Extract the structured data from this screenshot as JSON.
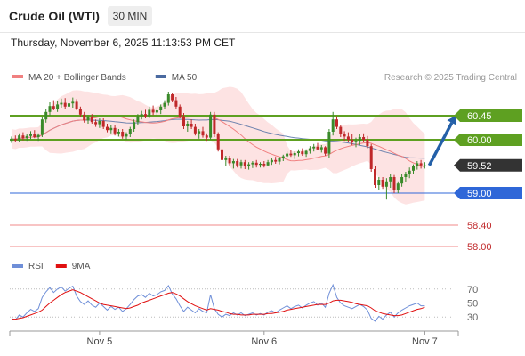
{
  "header": {
    "instrument": "Crude Oil (WTI)",
    "timeframe": "30 MIN"
  },
  "datetime": "Thursday, November 6, 2025 11:13:53 PM CET",
  "credit": "Research © 2025 Trading Central",
  "colors": {
    "bull": "#3a8a2a",
    "bear": "#c0282a",
    "ma20": "#f08080",
    "ma50": "#4a6aa0",
    "bollinger_fill": "#fde0e0",
    "resistance": "#5ea021",
    "pivot": "#2f67d8",
    "support": "#f08a8a",
    "current": "#333333",
    "rsi": "#6f8fd8",
    "rsi_ma": "#e01010",
    "arrow": "#2460a8"
  },
  "chart_data": [
    {
      "type": "candlestick",
      "x_ticks": [
        "Nov 5",
        "Nov 6",
        "Nov 7"
      ],
      "ylim": [
        57.9,
        60.95
      ],
      "legend": [
        {
          "name": "MA 20 + Bollinger Bands",
          "color": "#f08080"
        },
        {
          "name": "MA 50",
          "color": "#4a6aa0"
        }
      ],
      "levels": [
        {
          "value": 60.45,
          "label": "60.45",
          "type": "resistance"
        },
        {
          "value": 60.0,
          "label": "60.00",
          "type": "resistance"
        },
        {
          "value": 59.52,
          "label": "59.52",
          "type": "current"
        },
        {
          "value": 59.0,
          "label": "59.00",
          "type": "pivot"
        },
        {
          "value": 58.4,
          "label": "58.40",
          "type": "support"
        },
        {
          "value": 58.0,
          "label": "58.00",
          "type": "support"
        }
      ],
      "candles": [
        [
          59.98,
          60.06,
          59.94,
          60.02
        ],
        [
          60.02,
          60.08,
          59.96,
          59.99
        ],
        [
          59.99,
          60.12,
          59.95,
          60.08
        ],
        [
          60.08,
          60.14,
          59.99,
          60.03
        ],
        [
          60.03,
          60.1,
          59.98,
          60.07
        ],
        [
          60.07,
          60.16,
          60.01,
          60.11
        ],
        [
          60.11,
          60.18,
          60.03,
          60.05
        ],
        [
          60.05,
          60.12,
          59.98,
          60.09
        ],
        [
          60.09,
          60.42,
          60.05,
          60.38
        ],
        [
          60.38,
          60.58,
          60.32,
          60.52
        ],
        [
          60.52,
          60.7,
          60.45,
          60.63
        ],
        [
          60.63,
          60.74,
          60.55,
          60.58
        ],
        [
          60.58,
          60.72,
          60.52,
          60.66
        ],
        [
          60.66,
          60.77,
          60.6,
          60.69
        ],
        [
          60.69,
          60.78,
          60.58,
          60.62
        ],
        [
          60.62,
          60.72,
          60.55,
          60.68
        ],
        [
          60.68,
          60.79,
          60.6,
          60.71
        ],
        [
          60.71,
          60.76,
          60.55,
          60.58
        ],
        [
          60.58,
          60.62,
          60.42,
          60.47
        ],
        [
          60.47,
          60.52,
          60.32,
          60.36
        ],
        [
          60.36,
          60.46,
          60.3,
          60.42
        ],
        [
          60.42,
          60.48,
          60.3,
          60.33
        ],
        [
          60.33,
          60.38,
          60.24,
          60.29
        ],
        [
          60.29,
          60.4,
          60.22,
          60.35
        ],
        [
          60.35,
          60.4,
          60.2,
          60.24
        ],
        [
          60.24,
          60.3,
          60.14,
          60.18
        ],
        [
          60.18,
          60.28,
          60.12,
          60.22
        ],
        [
          60.22,
          60.27,
          60.08,
          60.12
        ],
        [
          60.12,
          60.2,
          60.06,
          60.15
        ],
        [
          60.15,
          60.2,
          60.02,
          60.06
        ],
        [
          60.06,
          60.14,
          60.0,
          60.1
        ],
        [
          60.1,
          60.24,
          60.05,
          60.2
        ],
        [
          60.2,
          60.38,
          60.15,
          60.33
        ],
        [
          60.33,
          60.48,
          60.27,
          60.44
        ],
        [
          60.44,
          60.54,
          60.38,
          60.48
        ],
        [
          60.48,
          60.56,
          60.4,
          60.44
        ],
        [
          60.44,
          60.62,
          60.4,
          60.56
        ],
        [
          60.56,
          60.64,
          60.46,
          60.51
        ],
        [
          60.51,
          60.58,
          60.46,
          60.55
        ],
        [
          60.55,
          60.66,
          60.48,
          60.62
        ],
        [
          60.62,
          60.74,
          60.57,
          60.69
        ],
        [
          60.69,
          60.9,
          60.64,
          60.85
        ],
        [
          60.85,
          60.88,
          60.7,
          60.74
        ],
        [
          60.74,
          60.8,
          60.58,
          60.62
        ],
        [
          60.62,
          60.66,
          60.4,
          60.44
        ],
        [
          60.44,
          60.5,
          60.2,
          60.25
        ],
        [
          60.25,
          60.35,
          60.15,
          60.3
        ],
        [
          60.3,
          60.38,
          60.2,
          60.24
        ],
        [
          60.24,
          60.3,
          60.08,
          60.12
        ],
        [
          60.12,
          60.2,
          60.02,
          60.16
        ],
        [
          60.16,
          60.24,
          60.04,
          60.08
        ],
        [
          60.08,
          60.12,
          59.98,
          60.04
        ],
        [
          60.04,
          60.52,
          60.0,
          60.47
        ],
        [
          60.47,
          60.52,
          60.05,
          60.1
        ],
        [
          60.1,
          60.14,
          59.78,
          59.82
        ],
        [
          59.82,
          59.86,
          59.58,
          59.62
        ],
        [
          59.62,
          59.7,
          59.5,
          59.65
        ],
        [
          59.65,
          59.7,
          59.52,
          59.56
        ],
        [
          59.56,
          59.64,
          59.46,
          59.6
        ],
        [
          59.6,
          59.64,
          59.48,
          59.52
        ],
        [
          59.52,
          59.62,
          59.46,
          59.58
        ],
        [
          59.58,
          59.62,
          59.45,
          59.5
        ],
        [
          59.5,
          59.58,
          59.44,
          59.54
        ],
        [
          59.54,
          59.6,
          59.47,
          59.57
        ],
        [
          59.57,
          59.62,
          59.48,
          59.53
        ],
        [
          59.53,
          59.58,
          59.48,
          59.55
        ],
        [
          59.55,
          59.6,
          59.48,
          59.52
        ],
        [
          59.52,
          59.62,
          59.5,
          59.58
        ],
        [
          59.58,
          59.66,
          59.53,
          59.62
        ],
        [
          59.62,
          59.68,
          59.55,
          59.59
        ],
        [
          59.59,
          59.68,
          59.54,
          59.65
        ],
        [
          59.65,
          59.72,
          59.6,
          59.69
        ],
        [
          59.69,
          59.78,
          59.64,
          59.74
        ],
        [
          59.74,
          59.8,
          59.68,
          59.71
        ],
        [
          59.71,
          59.78,
          59.64,
          59.75
        ],
        [
          59.75,
          59.82,
          59.69,
          59.78
        ],
        [
          59.78,
          59.84,
          59.7,
          59.73
        ],
        [
          59.73,
          59.82,
          59.68,
          59.79
        ],
        [
          59.79,
          59.88,
          59.74,
          59.84
        ],
        [
          59.84,
          59.92,
          59.78,
          59.87
        ],
        [
          59.87,
          59.94,
          59.8,
          59.82
        ],
        [
          59.82,
          59.9,
          59.76,
          59.86
        ],
        [
          59.86,
          59.88,
          59.7,
          59.74
        ],
        [
          59.74,
          60.2,
          59.66,
          60.15
        ],
        [
          60.15,
          60.52,
          60.08,
          60.38
        ],
        [
          60.38,
          60.44,
          60.2,
          60.24
        ],
        [
          60.24,
          60.28,
          60.05,
          60.1
        ],
        [
          60.1,
          60.16,
          59.98,
          60.06
        ],
        [
          60.06,
          60.14,
          59.96,
          60.0
        ],
        [
          60.0,
          60.1,
          59.9,
          59.95
        ],
        [
          59.95,
          60.04,
          59.86,
          59.98
        ],
        [
          59.98,
          60.1,
          59.9,
          60.05
        ],
        [
          60.05,
          60.12,
          59.95,
          60.0
        ],
        [
          60.0,
          60.07,
          59.84,
          59.88
        ],
        [
          59.88,
          59.92,
          59.4,
          59.45
        ],
        [
          59.45,
          59.5,
          59.1,
          59.15
        ],
        [
          59.15,
          59.3,
          59.05,
          59.25
        ],
        [
          59.25,
          59.3,
          59.08,
          59.12
        ],
        [
          59.12,
          59.28,
          58.88,
          59.22
        ],
        [
          59.22,
          59.35,
          59.1,
          59.3
        ],
        [
          59.3,
          59.34,
          59.0,
          59.05
        ],
        [
          59.05,
          59.22,
          59.0,
          59.18
        ],
        [
          59.18,
          59.35,
          59.12,
          59.3
        ],
        [
          59.3,
          59.4,
          59.2,
          59.36
        ],
        [
          59.36,
          59.48,
          59.28,
          59.42
        ],
        [
          59.42,
          59.54,
          59.36,
          59.5
        ],
        [
          59.5,
          59.6,
          59.44,
          59.56
        ],
        [
          59.56,
          59.62,
          59.46,
          59.52
        ],
        [
          59.52,
          59.58,
          59.46,
          59.52
        ]
      ],
      "forecast": {
        "from": 59.52,
        "to": 60.45
      }
    },
    {
      "type": "line",
      "legend": [
        {
          "name": "RSI",
          "color": "#6f8fd8"
        },
        {
          "name": "9MA",
          "color": "#e01010"
        }
      ],
      "y_ticks": [
        "70",
        "50",
        "30"
      ],
      "ylim": [
        15,
        85
      ],
      "series": [
        {
          "name": "RSI",
          "values": [
            28,
            26,
            33,
            30,
            36,
            41,
            38,
            42,
            58,
            66,
            72,
            65,
            70,
            73,
            67,
            71,
            74,
            60,
            52,
            48,
            53,
            47,
            44,
            50,
            45,
            40,
            45,
            41,
            44,
            38,
            42,
            48,
            55,
            60,
            62,
            58,
            64,
            60,
            62,
            66,
            68,
            75,
            63,
            56,
            46,
            38,
            44,
            40,
            36,
            42,
            38,
            36,
            62,
            42,
            34,
            30,
            34,
            32,
            36,
            33,
            36,
            32,
            34,
            36,
            33,
            35,
            33,
            37,
            39,
            36,
            40,
            43,
            46,
            42,
            45,
            47,
            43,
            47,
            50,
            52,
            47,
            50,
            44,
            64,
            76,
            58,
            50,
            46,
            44,
            42,
            45,
            48,
            45,
            40,
            28,
            24,
            31,
            27,
            33,
            37,
            30,
            36,
            40,
            43,
            46,
            48,
            50,
            46,
            46
          ]
        },
        {
          "name": "9MA",
          "values": [
            27,
            27,
            28,
            29,
            31,
            33,
            35,
            37,
            40,
            45,
            50,
            54,
            58,
            62,
            65,
            67,
            69,
            67,
            65,
            62,
            59,
            56,
            53,
            50,
            48,
            47,
            46,
            45,
            44,
            43,
            42,
            43,
            45,
            47,
            50,
            52,
            54,
            56,
            58,
            60,
            62,
            64,
            65,
            63,
            60,
            56,
            52,
            49,
            46,
            44,
            42,
            40,
            42,
            41,
            40,
            38,
            37,
            35,
            34,
            34,
            33,
            33,
            33,
            34,
            34,
            34,
            34,
            35,
            35,
            36,
            37,
            38,
            40,
            41,
            42,
            43,
            44,
            45,
            46,
            47,
            48,
            48,
            48,
            50,
            53,
            54,
            54,
            53,
            52,
            51,
            49,
            48,
            47,
            46,
            43,
            39,
            37,
            35,
            34,
            33,
            32,
            32,
            33,
            35,
            37,
            39,
            41,
            42,
            44
          ]
        }
      ]
    }
  ]
}
